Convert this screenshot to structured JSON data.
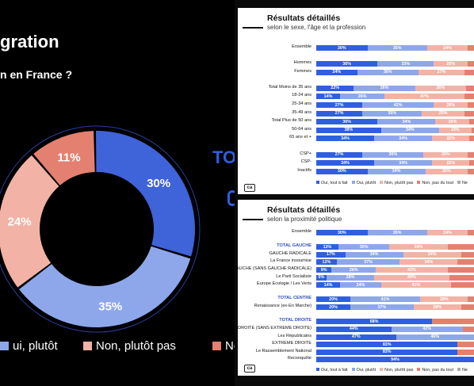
{
  "left_slide": {
    "title": "gration",
    "subtitle": "n en France ?",
    "donut": [
      {
        "label": "30%",
        "value": 30,
        "color": "#3f63d9"
      },
      {
        "label": "35%",
        "value": 35,
        "color": "#8ea7ea"
      },
      {
        "label": "24%",
        "value": 24,
        "color": "#f2b3a6"
      },
      {
        "label": "11%",
        "value": 11,
        "color": "#e4806f"
      }
    ],
    "legend": [
      {
        "label": "ui, plutôt",
        "color": "#8ea7ea"
      },
      {
        "label": "Non, plutôt pas",
        "color": "#f2b3a6"
      },
      {
        "label": "No",
        "color": "#e4806f"
      }
    ],
    "peek_text": "TO"
  },
  "panel1": {
    "title": "Résultats détaillés",
    "subtitle": "selon le sexe, l'âge et la profession",
    "logo": "ca",
    "legend": [
      {
        "label": "Oui, tout à fait",
        "color": "#2f5fe0"
      },
      {
        "label": "Oui, plutôt",
        "color": "#8ea7ea"
      },
      {
        "label": "Non, plutôt pas",
        "color": "#f2b3a6"
      },
      {
        "label": "Non, pas du tout",
        "color": "#e4806f"
      },
      {
        "label": "Ne",
        "color": "#aaaaaa"
      }
    ],
    "rows": [
      {
        "label": "Ensemble",
        "values": [
          30,
          35,
          24
        ],
        "labels": [
          "30%",
          "35%",
          "24%"
        ],
        "total": false
      },
      {
        "label": "Hommes",
        "values": [
          36,
          33,
          20
        ],
        "labels": [
          "36%",
          "33%",
          "20%"
        ],
        "total": false
      },
      {
        "label": "Femmes",
        "values": [
          24,
          36,
          27
        ],
        "labels": [
          "24%",
          "36%",
          "27%"
        ],
        "total": false
      },
      {
        "label": "Total Moins de 35 ans",
        "values": [
          22,
          36,
          30
        ],
        "labels": [
          "22%",
          "36%",
          "30%"
        ],
        "total": false
      },
      {
        "label": "18-24 ans",
        "values": [
          14,
          26,
          47
        ],
        "labels": [
          "14%",
          "26%",
          "47%"
        ],
        "total": false
      },
      {
        "label": "25-34 ans",
        "values": [
          27,
          42,
          20
        ],
        "labels": [
          "27%",
          "42%",
          "20%"
        ],
        "total": false
      },
      {
        "label": "35-49 ans",
        "values": [
          27,
          35,
          25
        ],
        "labels": [
          "27%",
          "35%",
          "25%"
        ],
        "total": false
      },
      {
        "label": "Total Plus de 50 ans",
        "values": [
          36,
          34,
          20
        ],
        "labels": [
          "36%",
          "34%",
          "20%"
        ],
        "total": false
      },
      {
        "label": "50-64 ans",
        "values": [
          38,
          34,
          19
        ],
        "labels": [
          "38%",
          "34%",
          "19%"
        ],
        "total": false
      },
      {
        "label": "65 ans et +",
        "values": [
          34,
          34,
          22
        ],
        "labels": [
          "34%",
          "34%",
          "22%"
        ],
        "total": false
      },
      {
        "label": "CSP+",
        "values": [
          27,
          36,
          26
        ],
        "labels": [
          "27%",
          "36%",
          "26%"
        ],
        "total": false
      },
      {
        "label": "CSP-",
        "values": [
          34,
          34,
          22
        ],
        "labels": [
          "34%",
          "34%",
          "22%"
        ],
        "total": false
      },
      {
        "label": "Inactifs",
        "values": [
          30,
          34,
          25
        ],
        "labels": [
          "30%",
          "34%",
          "25%"
        ],
        "total": false
      }
    ]
  },
  "panel2": {
    "title": "Résultats détaillés",
    "subtitle": "selon la proximité politique",
    "logo": "ca",
    "legend": [
      {
        "label": "Oui, tout à fait",
        "color": "#2f5fe0"
      },
      {
        "label": "Oui, plutôt",
        "color": "#8ea7ea"
      },
      {
        "label": "Non, plutôt pas",
        "color": "#f2b3a6"
      },
      {
        "label": "Non, pas du tout",
        "color": "#e4806f"
      },
      {
        "label": "Ne",
        "color": "#aaaaaa"
      }
    ],
    "rows": [
      {
        "label": "Ensemble",
        "values": [
          30,
          35,
          24
        ],
        "labels": [
          "30%",
          "35%",
          "24%"
        ],
        "total": false
      },
      {
        "label": "TOTAL GAUCHE",
        "values": [
          13,
          30,
          34
        ],
        "labels": [
          "13%",
          "30%",
          "34%"
        ],
        "total": true
      },
      {
        "label": "GAUCHE RADICALE",
        "values": [
          17,
          34,
          34
        ],
        "labels": [
          "17%",
          "34%",
          "34%"
        ],
        "total": false
      },
      {
        "label": "La France insoumise",
        "values": [
          12,
          37,
          34
        ],
        "labels": [
          "12%",
          "37%",
          "34%"
        ],
        "total": false
      },
      {
        "label": "GAUCHE (SANS GAUCHE RADICALE)",
        "values": [
          9,
          26,
          42
        ],
        "labels": [
          "9%",
          "26%",
          "42%"
        ],
        "total": false
      },
      {
        "label": "Le Parti Socialiste",
        "values": [
          6,
          28,
          44
        ],
        "labels": [
          "6%",
          "28%",
          "44%"
        ],
        "total": false
      },
      {
        "label": "Europe Ecologie / Les Verts",
        "values": [
          14,
          24,
          41
        ],
        "labels": [
          "14%",
          "24%",
          "41%"
        ],
        "total": false
      },
      {
        "label": "TOTAL CENTRE",
        "values": [
          20,
          41,
          28
        ],
        "labels": [
          "20%",
          "41%",
          "28%"
        ],
        "total": true
      },
      {
        "label": "Renaissance (ex-En Marche)",
        "values": [
          20,
          37,
          28
        ],
        "labels": [
          "20%",
          "37%",
          "28%"
        ],
        "total": false
      },
      {
        "label": "TOTAL DROITE",
        "values": [
          68
        ],
        "labels": [
          "68%"
        ],
        "total": true
      },
      {
        "label": "DROITE (SANS EXTREME DROITE)",
        "values": [
          44,
          42
        ],
        "labels": [
          "44%",
          "42%"
        ],
        "total": false
      },
      {
        "label": "Les Républicains",
        "values": [
          47,
          46
        ],
        "labels": [
          "47%",
          "46%"
        ],
        "total": false
      },
      {
        "label": "EXTREME DROITE",
        "values": [
          83
        ],
        "labels": [
          "83%"
        ],
        "total": false
      },
      {
        "label": "Le Rassemblement National",
        "values": [
          83
        ],
        "labels": [
          "83%"
        ],
        "total": false
      },
      {
        "label": "Reconquête",
        "values": [
          94
        ],
        "labels": [
          "94%"
        ],
        "total": false
      }
    ]
  }
}
